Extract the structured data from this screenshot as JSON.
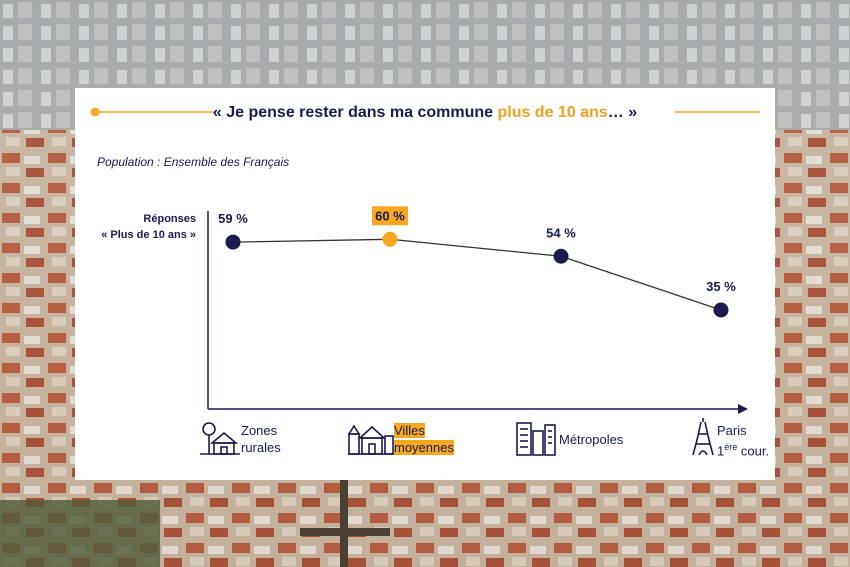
{
  "title": {
    "quote_open": "«",
    "before": " Je pense rester dans ma commune ",
    "highlight": "plus de 10 ans",
    "after": "… ",
    "quote_close": "»"
  },
  "subtitle": "Population : Ensemble des Français",
  "colors": {
    "dark": "#1a1a50",
    "accent": "#f7a823",
    "line": "#333333"
  },
  "chart_data": {
    "type": "line",
    "ylabel_lines": [
      "Réponses",
      "« Plus de 10 ans »"
    ],
    "categories": [
      "Zones rurales",
      "Villes moyennes",
      "Métropoles",
      "Paris 1ère cour."
    ],
    "values": [
      59,
      60,
      54,
      35
    ],
    "data_labels": [
      "59 %",
      "60 %",
      "54 %",
      "35 %"
    ],
    "highlight_index": 1,
    "ylim": [
      0,
      70
    ]
  },
  "categories_display": [
    {
      "line1": "Zones",
      "line2": "rurales",
      "icon": "house-tree-icon"
    },
    {
      "line1": "Villes",
      "line2": "moyennes",
      "icon": "town-buildings-icon",
      "highlight": true
    },
    {
      "line1": "Métropoles",
      "line2": "",
      "icon": "city-towers-icon"
    },
    {
      "line1": "Paris",
      "line2a": "1",
      "line2sup": "ère",
      "line2b": " cour.",
      "icon": "eiffel-tower-icon"
    }
  ]
}
